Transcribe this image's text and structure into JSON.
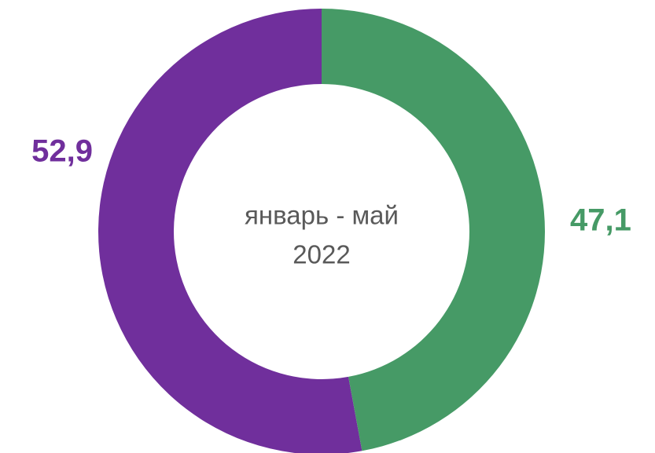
{
  "chart_data": {
    "type": "donut",
    "values": [
      47.1,
      52.9
    ],
    "value_labels": [
      "47,1",
      "52,9"
    ],
    "colors": [
      "#469a66",
      "#702f9c"
    ],
    "center_text": [
      "январь - май",
      "2022"
    ]
  }
}
